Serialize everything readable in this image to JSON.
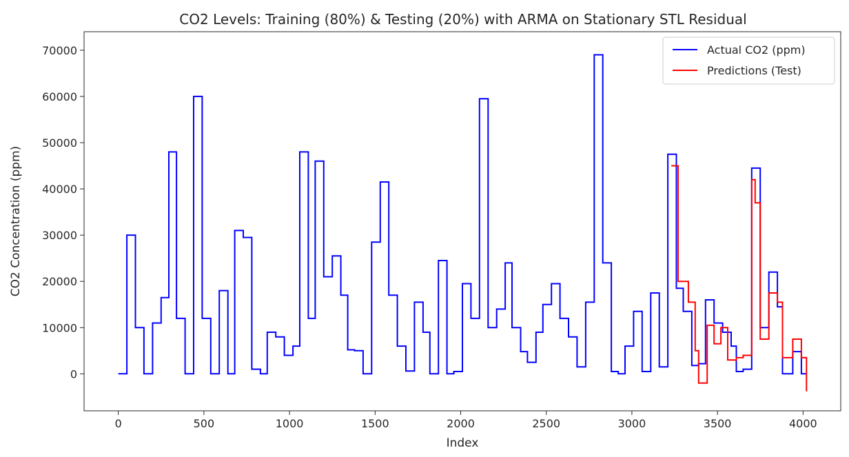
{
  "chart_data": {
    "type": "line",
    "title": "CO2 Levels: Training (80%) & Testing (20%) with ARMA on Stationary STL Residual",
    "xlabel": "Index",
    "ylabel": "CO2 Concentration (ppm)",
    "xlim": [
      -200,
      4220
    ],
    "ylim": [
      -8000,
      74000
    ],
    "xticks": [
      0,
      500,
      1000,
      1500,
      2000,
      2500,
      3000,
      3500,
      4000
    ],
    "yticks": [
      0,
      10000,
      20000,
      30000,
      40000,
      50000,
      60000,
      70000
    ],
    "xtick_labels": [
      "0",
      "500",
      "1000",
      "1500",
      "2000",
      "2500",
      "3000",
      "3500",
      "4000"
    ],
    "ytick_labels": [
      "0",
      "10000",
      "20000",
      "30000",
      "40000",
      "50000",
      "60000",
      "70000"
    ],
    "grid": false,
    "legend_position": "top-right",
    "series": [
      {
        "name": "Actual CO2 (ppm)",
        "color": "#0000ff",
        "x": [
          0,
          50,
          50,
          100,
          100,
          150,
          150,
          200,
          200,
          250,
          250,
          295,
          295,
          340,
          340,
          390,
          390,
          440,
          440,
          490,
          490,
          540,
          540,
          590,
          590,
          640,
          640,
          680,
          680,
          730,
          730,
          780,
          780,
          830,
          830,
          870,
          870,
          920,
          920,
          970,
          970,
          1020,
          1020,
          1060,
          1060,
          1110,
          1110,
          1150,
          1150,
          1200,
          1200,
          1250,
          1250,
          1300,
          1300,
          1340,
          1340,
          1380,
          1380,
          1430,
          1430,
          1480,
          1480,
          1530,
          1530,
          1580,
          1580,
          1630,
          1630,
          1680,
          1680,
          1730,
          1730,
          1780,
          1780,
          1820,
          1820,
          1870,
          1870,
          1920,
          1920,
          1960,
          1960,
          2010,
          2010,
          2060,
          2060,
          2110,
          2110,
          2160,
          2160,
          2210,
          2210,
          2260,
          2260,
          2300,
          2300,
          2350,
          2350,
          2390,
          2390,
          2440,
          2440,
          2480,
          2480,
          2530,
          2530,
          2580,
          2580,
          2630,
          2630,
          2680,
          2680,
          2730,
          2730,
          2780,
          2780,
          2830,
          2830,
          2880,
          2880,
          2920,
          2920,
          2960,
          2960,
          3010,
          3010,
          3060,
          3060,
          3110,
          3110,
          3160,
          3160,
          3210,
          3210,
          3260,
          3260,
          3300,
          3300,
          3350,
          3350,
          3390,
          3390,
          3430,
          3430,
          3480,
          3480,
          3530,
          3530,
          3580,
          3580,
          3610,
          3610,
          3650,
          3650,
          3700,
          3700,
          3750,
          3750,
          3800,
          3800,
          3850,
          3850,
          3880,
          3880,
          3940,
          3940,
          3990,
          3990,
          4020
        ],
        "y": [
          0,
          0,
          30000,
          30000,
          10000,
          10000,
          0,
          0,
          11000,
          11000,
          16500,
          16500,
          48000,
          48000,
          12000,
          12000,
          0,
          0,
          60000,
          60000,
          12000,
          12000,
          0,
          0,
          18000,
          18000,
          0,
          0,
          31000,
          31000,
          29500,
          29500,
          1000,
          1000,
          0,
          0,
          9000,
          9000,
          8000,
          8000,
          4000,
          4000,
          6000,
          6000,
          48000,
          48000,
          12000,
          12000,
          46000,
          46000,
          21000,
          21000,
          25500,
          25500,
          17000,
          17000,
          5200,
          5200,
          5000,
          5000,
          0,
          0,
          28500,
          28500,
          41500,
          41500,
          17000,
          17000,
          6000,
          6000,
          600,
          600,
          15500,
          15500,
          9000,
          9000,
          0,
          0,
          24500,
          24500,
          0,
          0,
          500,
          500,
          19500,
          19500,
          12000,
          12000,
          59500,
          59500,
          10000,
          10000,
          14000,
          14000,
          24000,
          24000,
          10000,
          10000,
          4800,
          4800,
          2500,
          2500,
          9000,
          9000,
          15000,
          15000,
          19500,
          19500,
          12000,
          12000,
          8000,
          8000,
          1500,
          1500,
          15500,
          15500,
          69000,
          69000,
          24000,
          24000,
          500,
          500,
          0,
          0,
          6000,
          6000,
          13500,
          13500,
          500,
          500,
          17500,
          17500,
          1500,
          1500,
          47500,
          47500,
          18500,
          18500,
          13500,
          13500,
          1800,
          1800,
          2200,
          2200,
          16000,
          16000,
          11000,
          11000,
          9000,
          9000,
          6000,
          6000,
          500,
          500,
          1000,
          1000,
          44500,
          44500,
          10000,
          10000,
          22000,
          22000,
          14500,
          14500,
          0,
          0,
          4800,
          4800,
          0,
          0
        ]
      },
      {
        "name": "Predictions (Test)",
        "color": "#ff0000",
        "x": [
          3230,
          3270,
          3270,
          3330,
          3330,
          3370,
          3370,
          3390,
          3390,
          3440,
          3440,
          3480,
          3480,
          3520,
          3520,
          3560,
          3560,
          3610,
          3610,
          3650,
          3650,
          3700,
          3700,
          3720,
          3720,
          3750,
          3750,
          3800,
          3800,
          3850,
          3850,
          3880,
          3880,
          3940,
          3940,
          3990,
          3990,
          4020,
          4020
        ],
        "y": [
          45000,
          45000,
          20000,
          20000,
          15500,
          15500,
          5000,
          5000,
          -2000,
          -2000,
          10500,
          10500,
          6500,
          6500,
          10000,
          10000,
          3000,
          3000,
          3500,
          3500,
          4000,
          4000,
          42000,
          42000,
          37000,
          37000,
          7500,
          7500,
          17500,
          17500,
          15500,
          15500,
          3500,
          3500,
          7500,
          7500,
          3500,
          3500,
          -3800
        ]
      }
    ]
  }
}
